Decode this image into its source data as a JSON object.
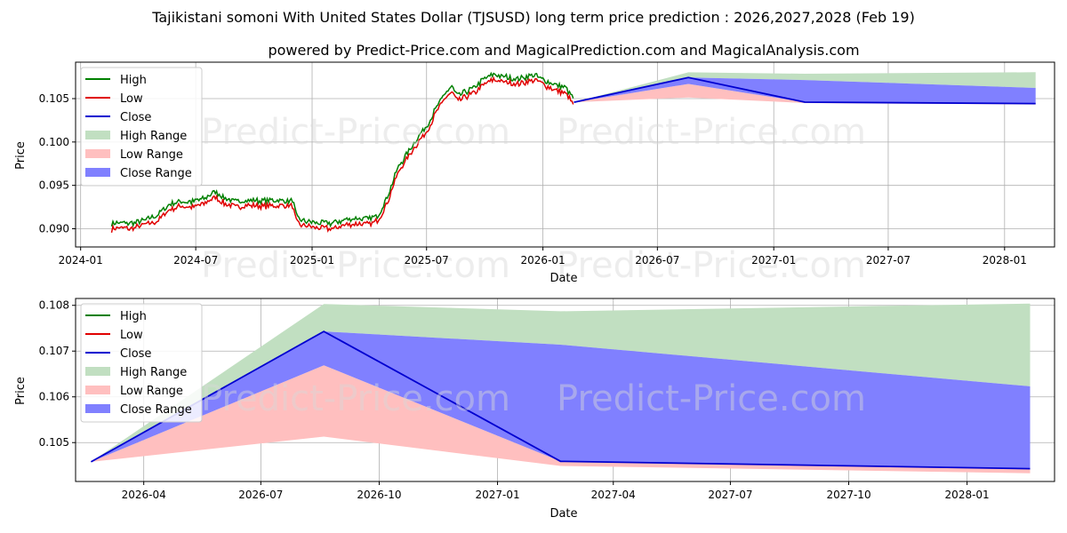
{
  "title": "Tajikistani somoni With United States Dollar (TJSUSD) long term price prediction : 2026,2027,2028 (Feb 19)",
  "subtitle": "powered by Predict-Price.com and MagicalPrediction.com and MagicalAnalysis.com",
  "watermark": "Predict-Price.com",
  "colors": {
    "high": "#008000",
    "low": "#e00000",
    "close": "#0000d0",
    "high_range": "#c1dfc1",
    "low_range": "#ffbfbf",
    "close_range": "#8080ff"
  },
  "chart_data": [
    {
      "type": "line",
      "panel": "top",
      "xlabel": "Date",
      "ylabel": "Price",
      "xlim": [
        "2023-12-24",
        "2028-03-20"
      ],
      "ylim": [
        0.0879,
        0.1092
      ],
      "grid": true,
      "legend_position": "top-left",
      "legend": [
        "High",
        "Low",
        "Close",
        "High Range",
        "Low Range",
        "Close Range"
      ],
      "x_ticks": [
        {
          "date": "2024-01-01",
          "label": "2024-01"
        },
        {
          "date": "2024-07-01",
          "label": "2024-07"
        },
        {
          "date": "2025-01-01",
          "label": "2025-01"
        },
        {
          "date": "2025-07-01",
          "label": "2025-07"
        },
        {
          "date": "2026-01-01",
          "label": "2026-01"
        },
        {
          "date": "2026-07-01",
          "label": "2026-07"
        },
        {
          "date": "2027-01-01",
          "label": "2027-01"
        },
        {
          "date": "2027-07-01",
          "label": "2027-07"
        },
        {
          "date": "2028-01-01",
          "label": "2028-01"
        }
      ],
      "y_ticks": [
        {
          "value": 0.09,
          "label": "0.090"
        },
        {
          "value": 0.095,
          "label": "0.095"
        },
        {
          "value": 0.1,
          "label": "0.100"
        },
        {
          "value": 0.105,
          "label": "0.105"
        }
      ],
      "history_anchors": [
        [
          "2024-02-19",
          0.0902
        ],
        [
          "2024-03-01",
          0.0904
        ],
        [
          "2024-03-20",
          0.0903
        ],
        [
          "2024-04-10",
          0.0907
        ],
        [
          "2024-05-01",
          0.0912
        ],
        [
          "2024-05-20",
          0.0925
        ],
        [
          "2024-06-05",
          0.0929
        ],
        [
          "2024-06-25",
          0.0928
        ],
        [
          "2024-07-15",
          0.0932
        ],
        [
          "2024-08-01",
          0.094
        ],
        [
          "2024-08-15",
          0.0932
        ],
        [
          "2024-09-01",
          0.0928
        ],
        [
          "2024-09-20",
          0.093
        ],
        [
          "2024-10-10",
          0.0929
        ],
        [
          "2024-11-01",
          0.093
        ],
        [
          "2024-11-20",
          0.0929
        ],
        [
          "2024-12-01",
          0.093
        ],
        [
          "2024-12-08",
          0.091
        ],
        [
          "2024-12-20",
          0.0906
        ],
        [
          "2025-01-10",
          0.0904
        ],
        [
          "2025-02-01",
          0.0903
        ],
        [
          "2025-02-20",
          0.0907
        ],
        [
          "2025-03-10",
          0.0909
        ],
        [
          "2025-04-01",
          0.0908
        ],
        [
          "2025-04-15",
          0.0912
        ],
        [
          "2025-05-01",
          0.0935
        ],
        [
          "2025-05-15",
          0.0965
        ],
        [
          "2025-06-01",
          0.0985
        ],
        [
          "2025-06-15",
          0.1
        ],
        [
          "2025-07-01",
          0.1015
        ],
        [
          "2025-07-15",
          0.1035
        ],
        [
          "2025-08-01",
          0.1055
        ],
        [
          "2025-08-10",
          0.106
        ],
        [
          "2025-08-20",
          0.105
        ],
        [
          "2025-09-01",
          0.1055
        ],
        [
          "2025-09-15",
          0.106
        ],
        [
          "2025-10-01",
          0.107
        ],
        [
          "2025-10-15",
          0.1075
        ],
        [
          "2025-11-01",
          0.1072
        ],
        [
          "2025-11-20",
          0.107
        ],
        [
          "2025-12-05",
          0.1072
        ],
        [
          "2025-12-20",
          0.1074
        ],
        [
          "2026-01-05",
          0.1068
        ],
        [
          "2026-01-20",
          0.1063
        ],
        [
          "2026-02-05",
          0.106
        ],
        [
          "2026-02-19",
          0.1046
        ]
      ],
      "history_high_spread": 0.0003,
      "history_low_spread": 0.0003
    },
    {
      "type": "area",
      "panel": "bottom",
      "xlabel": "Date",
      "ylabel": "Price",
      "xlim": [
        "2026-02-07",
        "2028-03-09"
      ],
      "ylim": [
        0.10415,
        0.10815
      ],
      "grid": true,
      "legend_position": "top-left",
      "legend": [
        "High",
        "Low",
        "Close",
        "High Range",
        "Low Range",
        "Close Range"
      ],
      "x_ticks": [
        {
          "date": "2026-04-01",
          "label": "2026-04"
        },
        {
          "date": "2026-07-01",
          "label": "2026-07"
        },
        {
          "date": "2026-10-01",
          "label": "2026-10"
        },
        {
          "date": "2027-01-01",
          "label": "2027-01"
        },
        {
          "date": "2027-04-01",
          "label": "2027-04"
        },
        {
          "date": "2027-07-01",
          "label": "2027-07"
        },
        {
          "date": "2027-10-01",
          "label": "2027-10"
        },
        {
          "date": "2028-01-01",
          "label": "2028-01"
        }
      ],
      "y_ticks": [
        {
          "value": 0.105,
          "label": "0.105"
        },
        {
          "value": 0.106,
          "label": "0.106"
        },
        {
          "value": 0.107,
          "label": "0.107"
        },
        {
          "value": 0.108,
          "label": "0.108"
        }
      ],
      "forecast": {
        "dates": [
          "2026-02-19",
          "2026-08-19",
          "2027-02-19",
          "2028-02-19"
        ],
        "close": [
          0.10458,
          0.10743,
          0.10459,
          0.10443
        ],
        "high_range_upper": [
          0.10458,
          0.10803,
          0.10787,
          0.10804
        ],
        "high_range_lower": [
          0.10458,
          0.10743,
          0.10714,
          0.10623
        ],
        "close_range_upper": [
          0.10458,
          0.10743,
          0.10714,
          0.10623
        ],
        "close_range_lower": [
          0.10458,
          0.10669,
          0.10459,
          0.10443
        ],
        "low_range_upper": [
          0.10458,
          0.10669,
          0.10459,
          0.10443
        ],
        "low_range_lower": [
          0.10458,
          0.10513,
          0.10449,
          0.10433
        ]
      }
    }
  ]
}
